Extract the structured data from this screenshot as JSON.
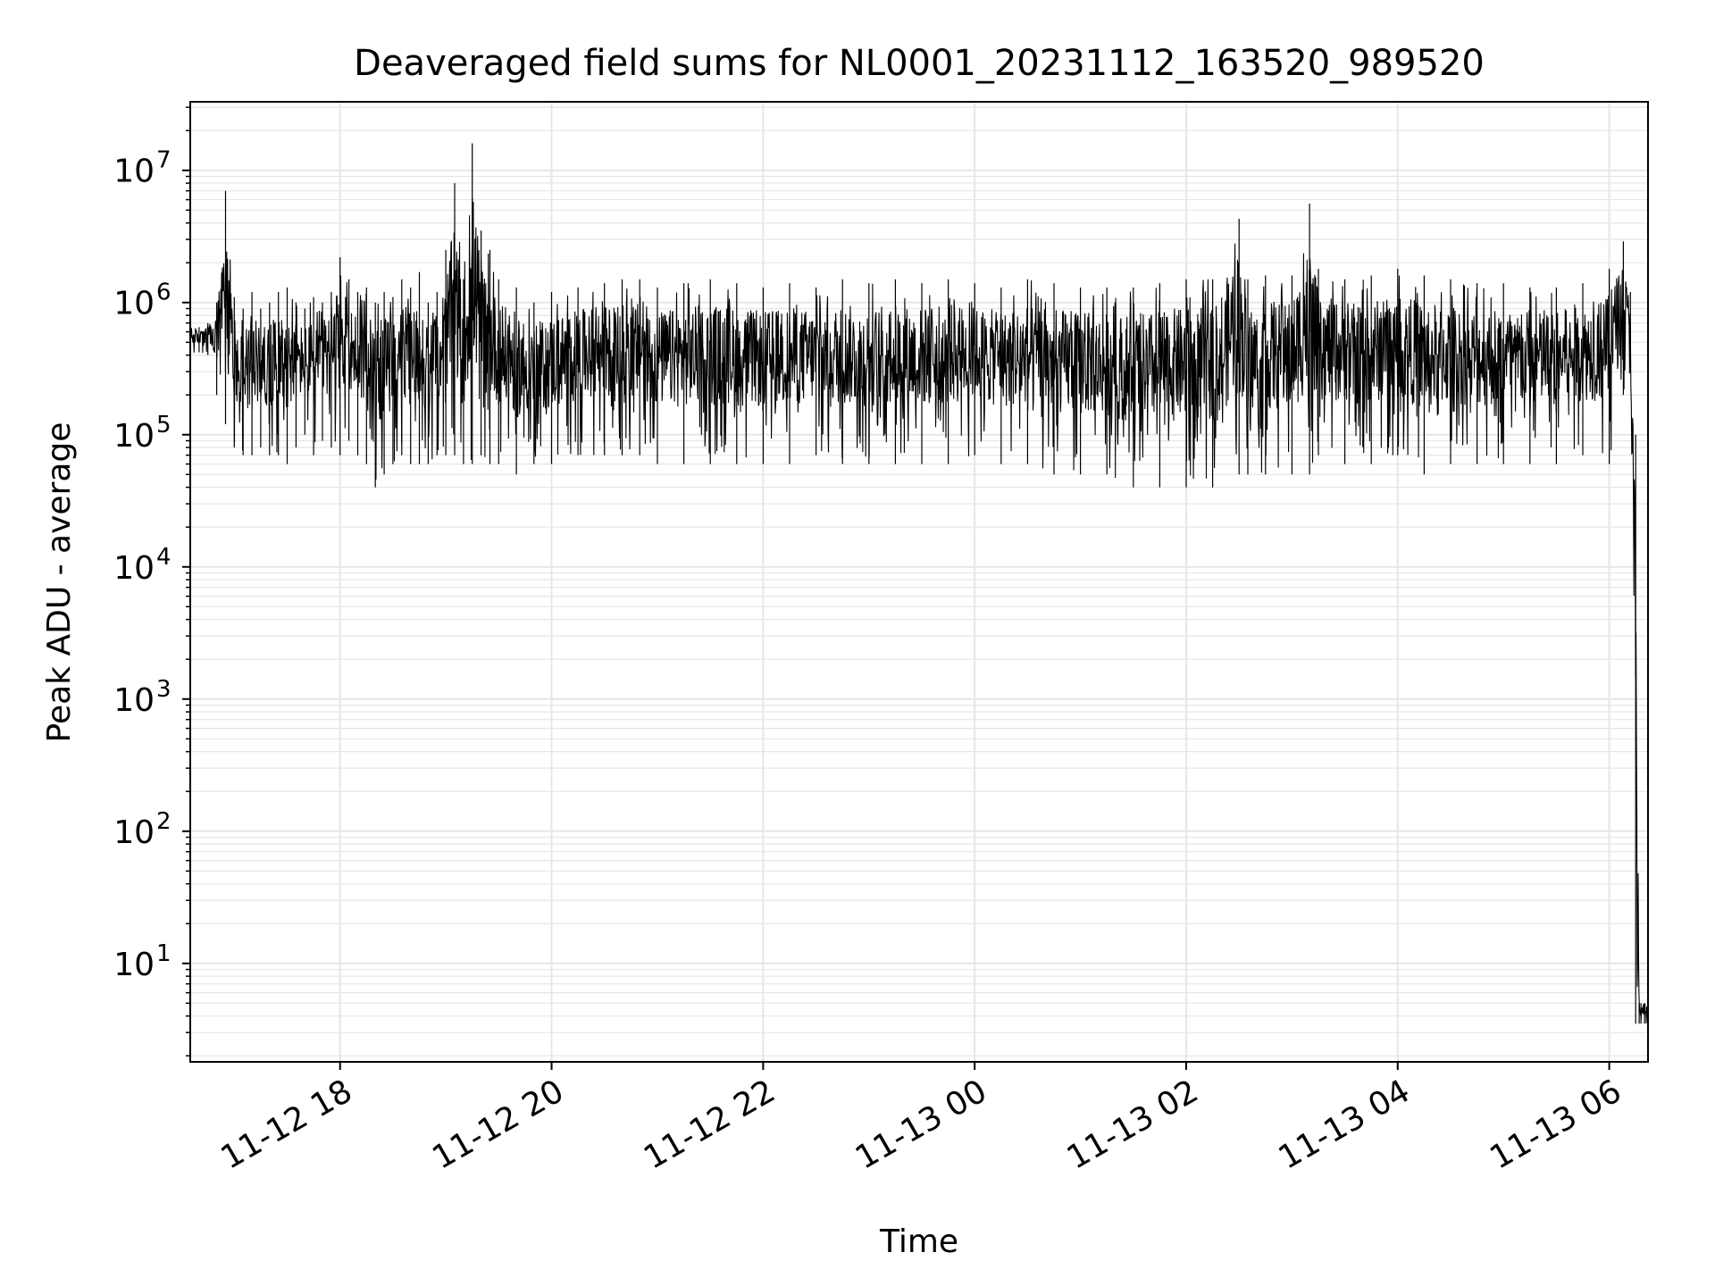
{
  "chart_data": {
    "type": "line",
    "title": "Deaveraged field sums for NL0001_20231112_163520_989520",
    "xlabel": "Time",
    "ylabel": "Peak ADU - average",
    "yscale": "log",
    "ylim": [
      1.8,
      33000000
    ],
    "xlim": [
      "2023-11-12 16:35",
      "2023-11-13 06:22"
    ],
    "grid": true,
    "line_color": "#000000",
    "grid_color": "#e6e6e6",
    "x_ticks": [
      {
        "t": "2023-11-12 18:00",
        "label": "11-12 18"
      },
      {
        "t": "2023-11-12 20:00",
        "label": "11-12 20"
      },
      {
        "t": "2023-11-12 22:00",
        "label": "11-12 22"
      },
      {
        "t": "2023-11-13 00:00",
        "label": "11-13 00"
      },
      {
        "t": "2023-11-13 02:00",
        "label": "11-13 02"
      },
      {
        "t": "2023-11-13 04:00",
        "label": "11-13 04"
      },
      {
        "t": "2023-11-13 06:00",
        "label": "11-13 06"
      }
    ],
    "y_ticks": [
      {
        "value": 10,
        "exp": "1"
      },
      {
        "value": 100,
        "exp": "2"
      },
      {
        "value": 1000,
        "exp": "3"
      },
      {
        "value": 10000,
        "exp": "4"
      },
      {
        "value": 100000,
        "exp": "5"
      },
      {
        "value": 1000000,
        "exp": "6"
      },
      {
        "value": 10000000,
        "exp": "7"
      }
    ],
    "series": [
      {
        "x": [
          "2023-11-12 16:35",
          "2023-11-12 16:40",
          "2023-11-12 16:45",
          "2023-11-12 16:50",
          "2023-11-12 16:55",
          "2023-11-12 17:00",
          "2023-11-12 17:05",
          "2023-11-12 17:10",
          "2023-11-12 17:15",
          "2023-11-12 17:20",
          "2023-11-12 17:25",
          "2023-11-12 17:30",
          "2023-11-12 17:35",
          "2023-11-12 17:40",
          "2023-11-12 17:45",
          "2023-11-12 17:50",
          "2023-11-12 17:55",
          "2023-11-12 18:00",
          "2023-11-12 18:05",
          "2023-11-12 18:10",
          "2023-11-12 18:15",
          "2023-11-12 18:20",
          "2023-11-12 18:25",
          "2023-11-12 18:30",
          "2023-11-12 18:35",
          "2023-11-12 18:40",
          "2023-11-12 18:45",
          "2023-11-12 18:50",
          "2023-11-12 18:55",
          "2023-11-12 19:00",
          "2023-11-12 19:05",
          "2023-11-12 19:10",
          "2023-11-12 19:15",
          "2023-11-12 19:20",
          "2023-11-12 19:25",
          "2023-11-12 19:30",
          "2023-11-12 19:40",
          "2023-11-12 19:50",
          "2023-11-12 20:00",
          "2023-11-12 20:15",
          "2023-11-12 20:30",
          "2023-11-12 20:40",
          "2023-11-12 20:50",
          "2023-11-12 21:00",
          "2023-11-12 21:15",
          "2023-11-12 21:30",
          "2023-11-12 21:45",
          "2023-11-12 22:00",
          "2023-11-12 22:15",
          "2023-11-12 22:30",
          "2023-11-12 22:45",
          "2023-11-12 23:00",
          "2023-11-12 23:15",
          "2023-11-12 23:30",
          "2023-11-12 23:45",
          "2023-11-13 00:00",
          "2023-11-13 00:15",
          "2023-11-13 00:30",
          "2023-11-13 00:45",
          "2023-11-13 01:00",
          "2023-11-13 01:15",
          "2023-11-13 01:30",
          "2023-11-13 01:45",
          "2023-11-13 02:00",
          "2023-11-13 02:15",
          "2023-11-13 02:30",
          "2023-11-13 02:35",
          "2023-11-13 02:45",
          "2023-11-13 03:00",
          "2023-11-13 03:10",
          "2023-11-13 03:15",
          "2023-11-13 03:30",
          "2023-11-13 03:45",
          "2023-11-13 04:00",
          "2023-11-13 04:15",
          "2023-11-13 04:30",
          "2023-11-13 04:45",
          "2023-11-13 05:00",
          "2023-11-13 05:15",
          "2023-11-13 05:30",
          "2023-11-13 05:45",
          "2023-11-13 06:00",
          "2023-11-13 06:08",
          "2023-11-13 06:12",
          "2023-11-13 06:15",
          "2023-11-13 06:17",
          "2023-11-13 06:18",
          "2023-11-13 06:20",
          "2023-11-13 06:22"
        ],
        "min": [
          400000,
          420000,
          400000,
          200000,
          120000,
          80000,
          70000,
          70000,
          80000,
          70000,
          70000,
          60000,
          80000,
          100000,
          70000,
          90000,
          80000,
          70000,
          90000,
          70000,
          60000,
          40000,
          50000,
          60000,
          70000,
          60000,
          60000,
          60000,
          70000,
          70000,
          70000,
          60000,
          60000,
          70000,
          60000,
          60000,
          50000,
          60000,
          60000,
          70000,
          70000,
          70000,
          70000,
          60000,
          60000,
          60000,
          60000,
          60000,
          60000,
          70000,
          60000,
          60000,
          60000,
          60000,
          60000,
          70000,
          60000,
          60000,
          50000,
          50000,
          50000,
          40000,
          40000,
          40000,
          40000,
          50000,
          50000,
          50000,
          50000,
          50000,
          70000,
          60000,
          60000,
          70000,
          50000,
          60000,
          60000,
          60000,
          60000,
          60000,
          70000,
          60000,
          200000,
          300000,
          3.5,
          3.5,
          3.5,
          3.5,
          3.5
        ],
        "max": [
          700000,
          650000,
          700000,
          1000000,
          7000000,
          1100000,
          900000,
          1200000,
          900000,
          1000000,
          1200000,
          1300000,
          1000000,
          900000,
          1100000,
          1000000,
          1200000,
          2200000,
          1500000,
          1200000,
          1300000,
          1000000,
          1200000,
          1100000,
          1500000,
          1300000,
          1700000,
          1000000,
          1200000,
          2500000,
          8000000,
          1500000,
          16000000,
          3500000,
          2500000,
          1500000,
          1300000,
          1000000,
          1200000,
          1300000,
          1400000,
          1500000,
          1500000,
          1300000,
          1400000,
          1500000,
          1400000,
          1300000,
          1400000,
          1300000,
          1500000,
          1400000,
          1500000,
          1400000,
          1500000,
          1400000,
          1300000,
          1500000,
          1400000,
          1300000,
          1300000,
          1300000,
          1400000,
          1500000,
          1500000,
          4300000,
          1500000,
          1600000,
          1600000,
          5600000,
          1800000,
          1500000,
          1600000,
          1800000,
          1600000,
          1500000,
          1400000,
          1400000,
          1300000,
          1300000,
          1400000,
          1800000,
          2900000,
          1200000,
          100000,
          5,
          5,
          5,
          5
        ]
      }
    ]
  }
}
